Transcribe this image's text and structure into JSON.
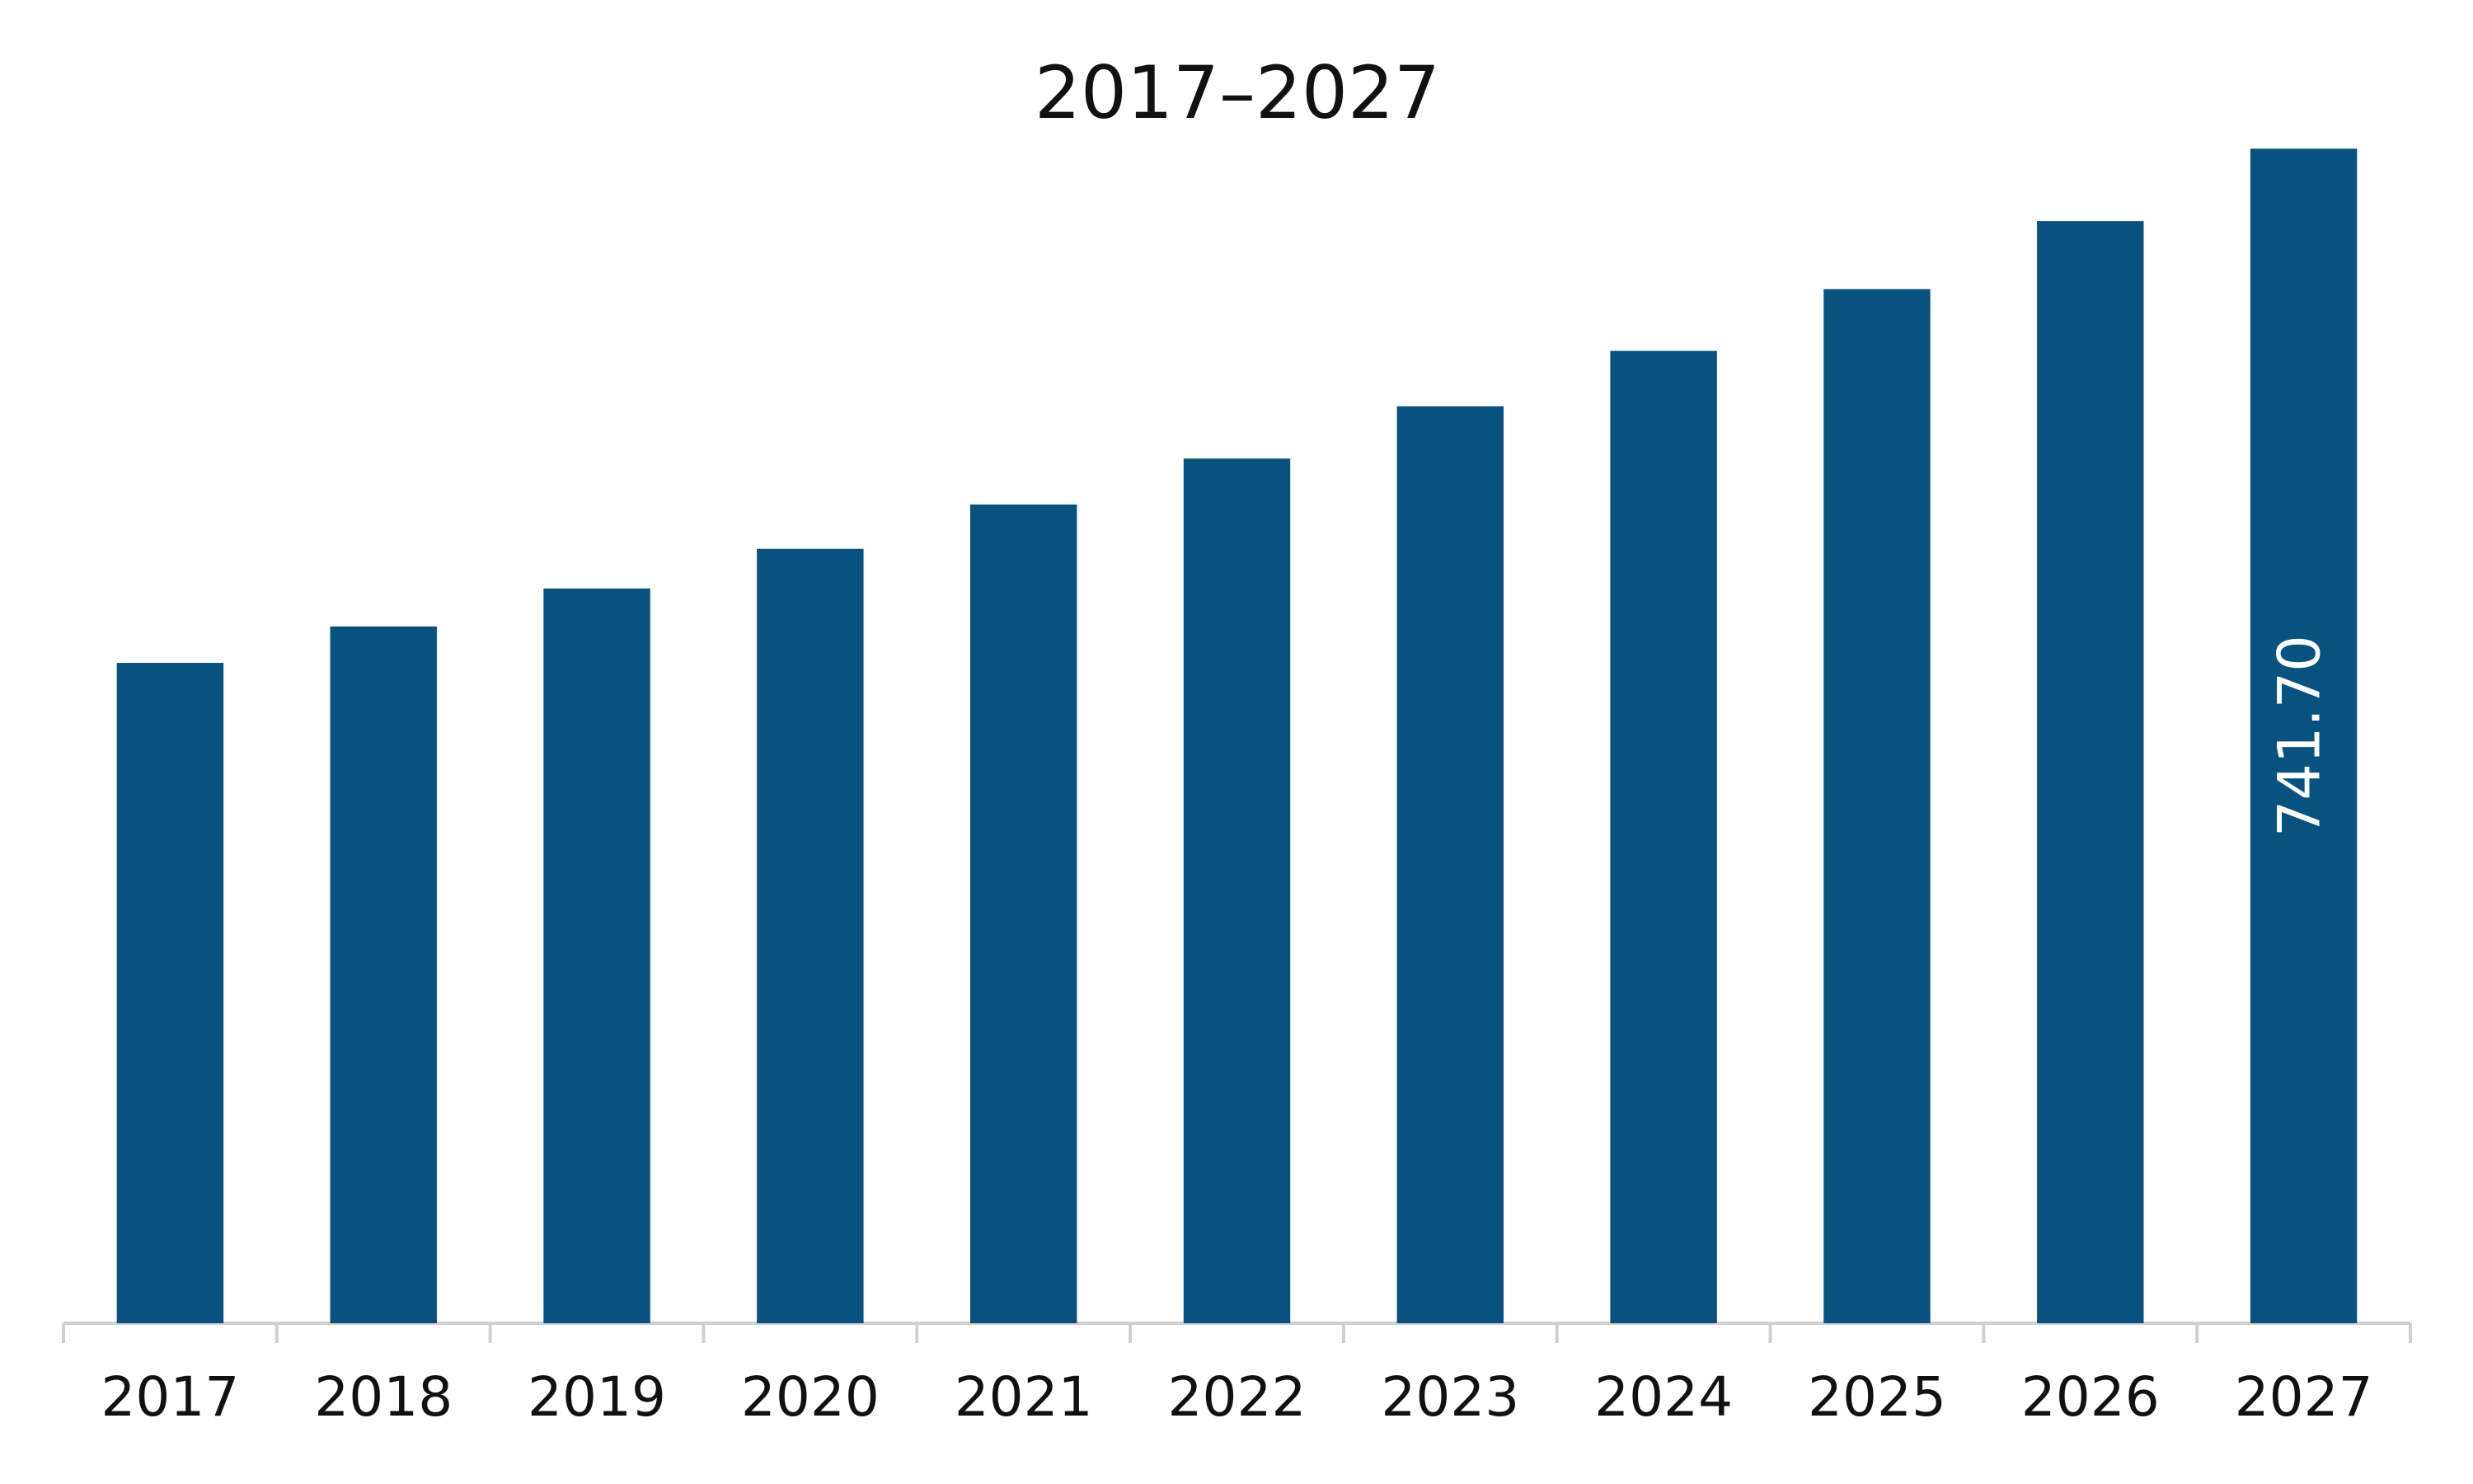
{
  "chart_data": {
    "type": "bar",
    "title": "2017–2027",
    "categories": [
      "2017",
      "2018",
      "2019",
      "2020",
      "2021",
      "2022",
      "2023",
      "2024",
      "2025",
      "2026",
      "2027"
    ],
    "values": [
      417,
      440,
      464,
      489,
      517,
      546,
      579,
      614,
      653,
      696,
      741.7
    ],
    "value_labels": [
      null,
      null,
      null,
      null,
      null,
      null,
      null,
      null,
      null,
      null,
      "741.70"
    ],
    "color": "#08527f",
    "ylim": [
      0,
      745
    ]
  }
}
